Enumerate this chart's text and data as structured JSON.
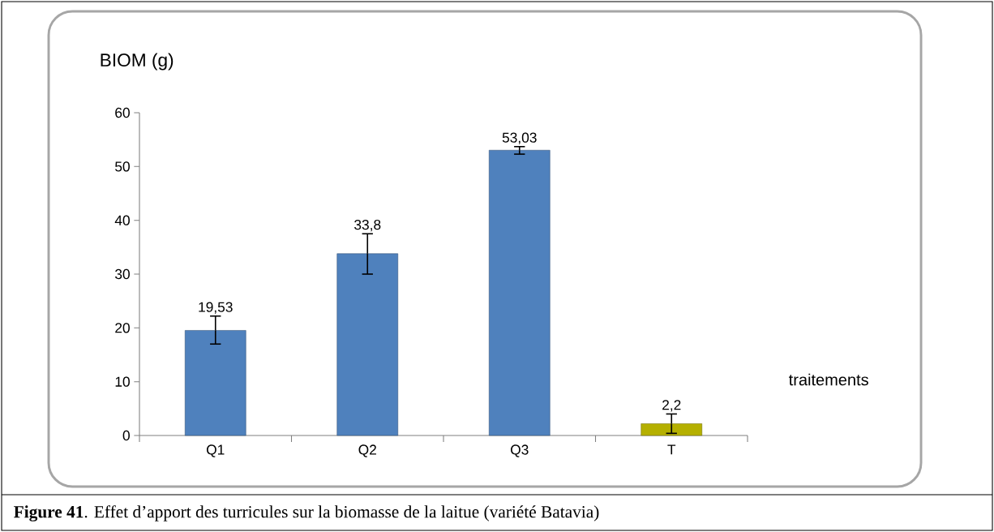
{
  "chart_data": {
    "type": "bar",
    "ylabel": "BIOM (g)",
    "xlabel": "traitements",
    "categories": [
      "Q1",
      "Q2",
      "Q3",
      "T"
    ],
    "values": [
      19.53,
      33.8,
      53.03,
      2.2
    ],
    "value_labels": [
      "19,53",
      "33,8",
      "53,03",
      "2,2"
    ],
    "errors": [
      [
        17,
        22.2
      ],
      [
        30,
        37.5
      ],
      [
        52.3,
        53.7
      ],
      [
        0.4,
        4.0
      ]
    ],
    "colors": [
      "#4f81bd",
      "#4f81bd",
      "#4f81bd",
      "#b5b000"
    ],
    "ylim": [
      0,
      60
    ],
    "yticks": [
      0,
      10,
      20,
      30,
      40,
      50,
      60
    ],
    "grid": false,
    "annotations": [
      "**Figure 41**. Effet d’apport des turricules sur la biomasse de la laitue (variété Batavia)"
    ]
  }
}
